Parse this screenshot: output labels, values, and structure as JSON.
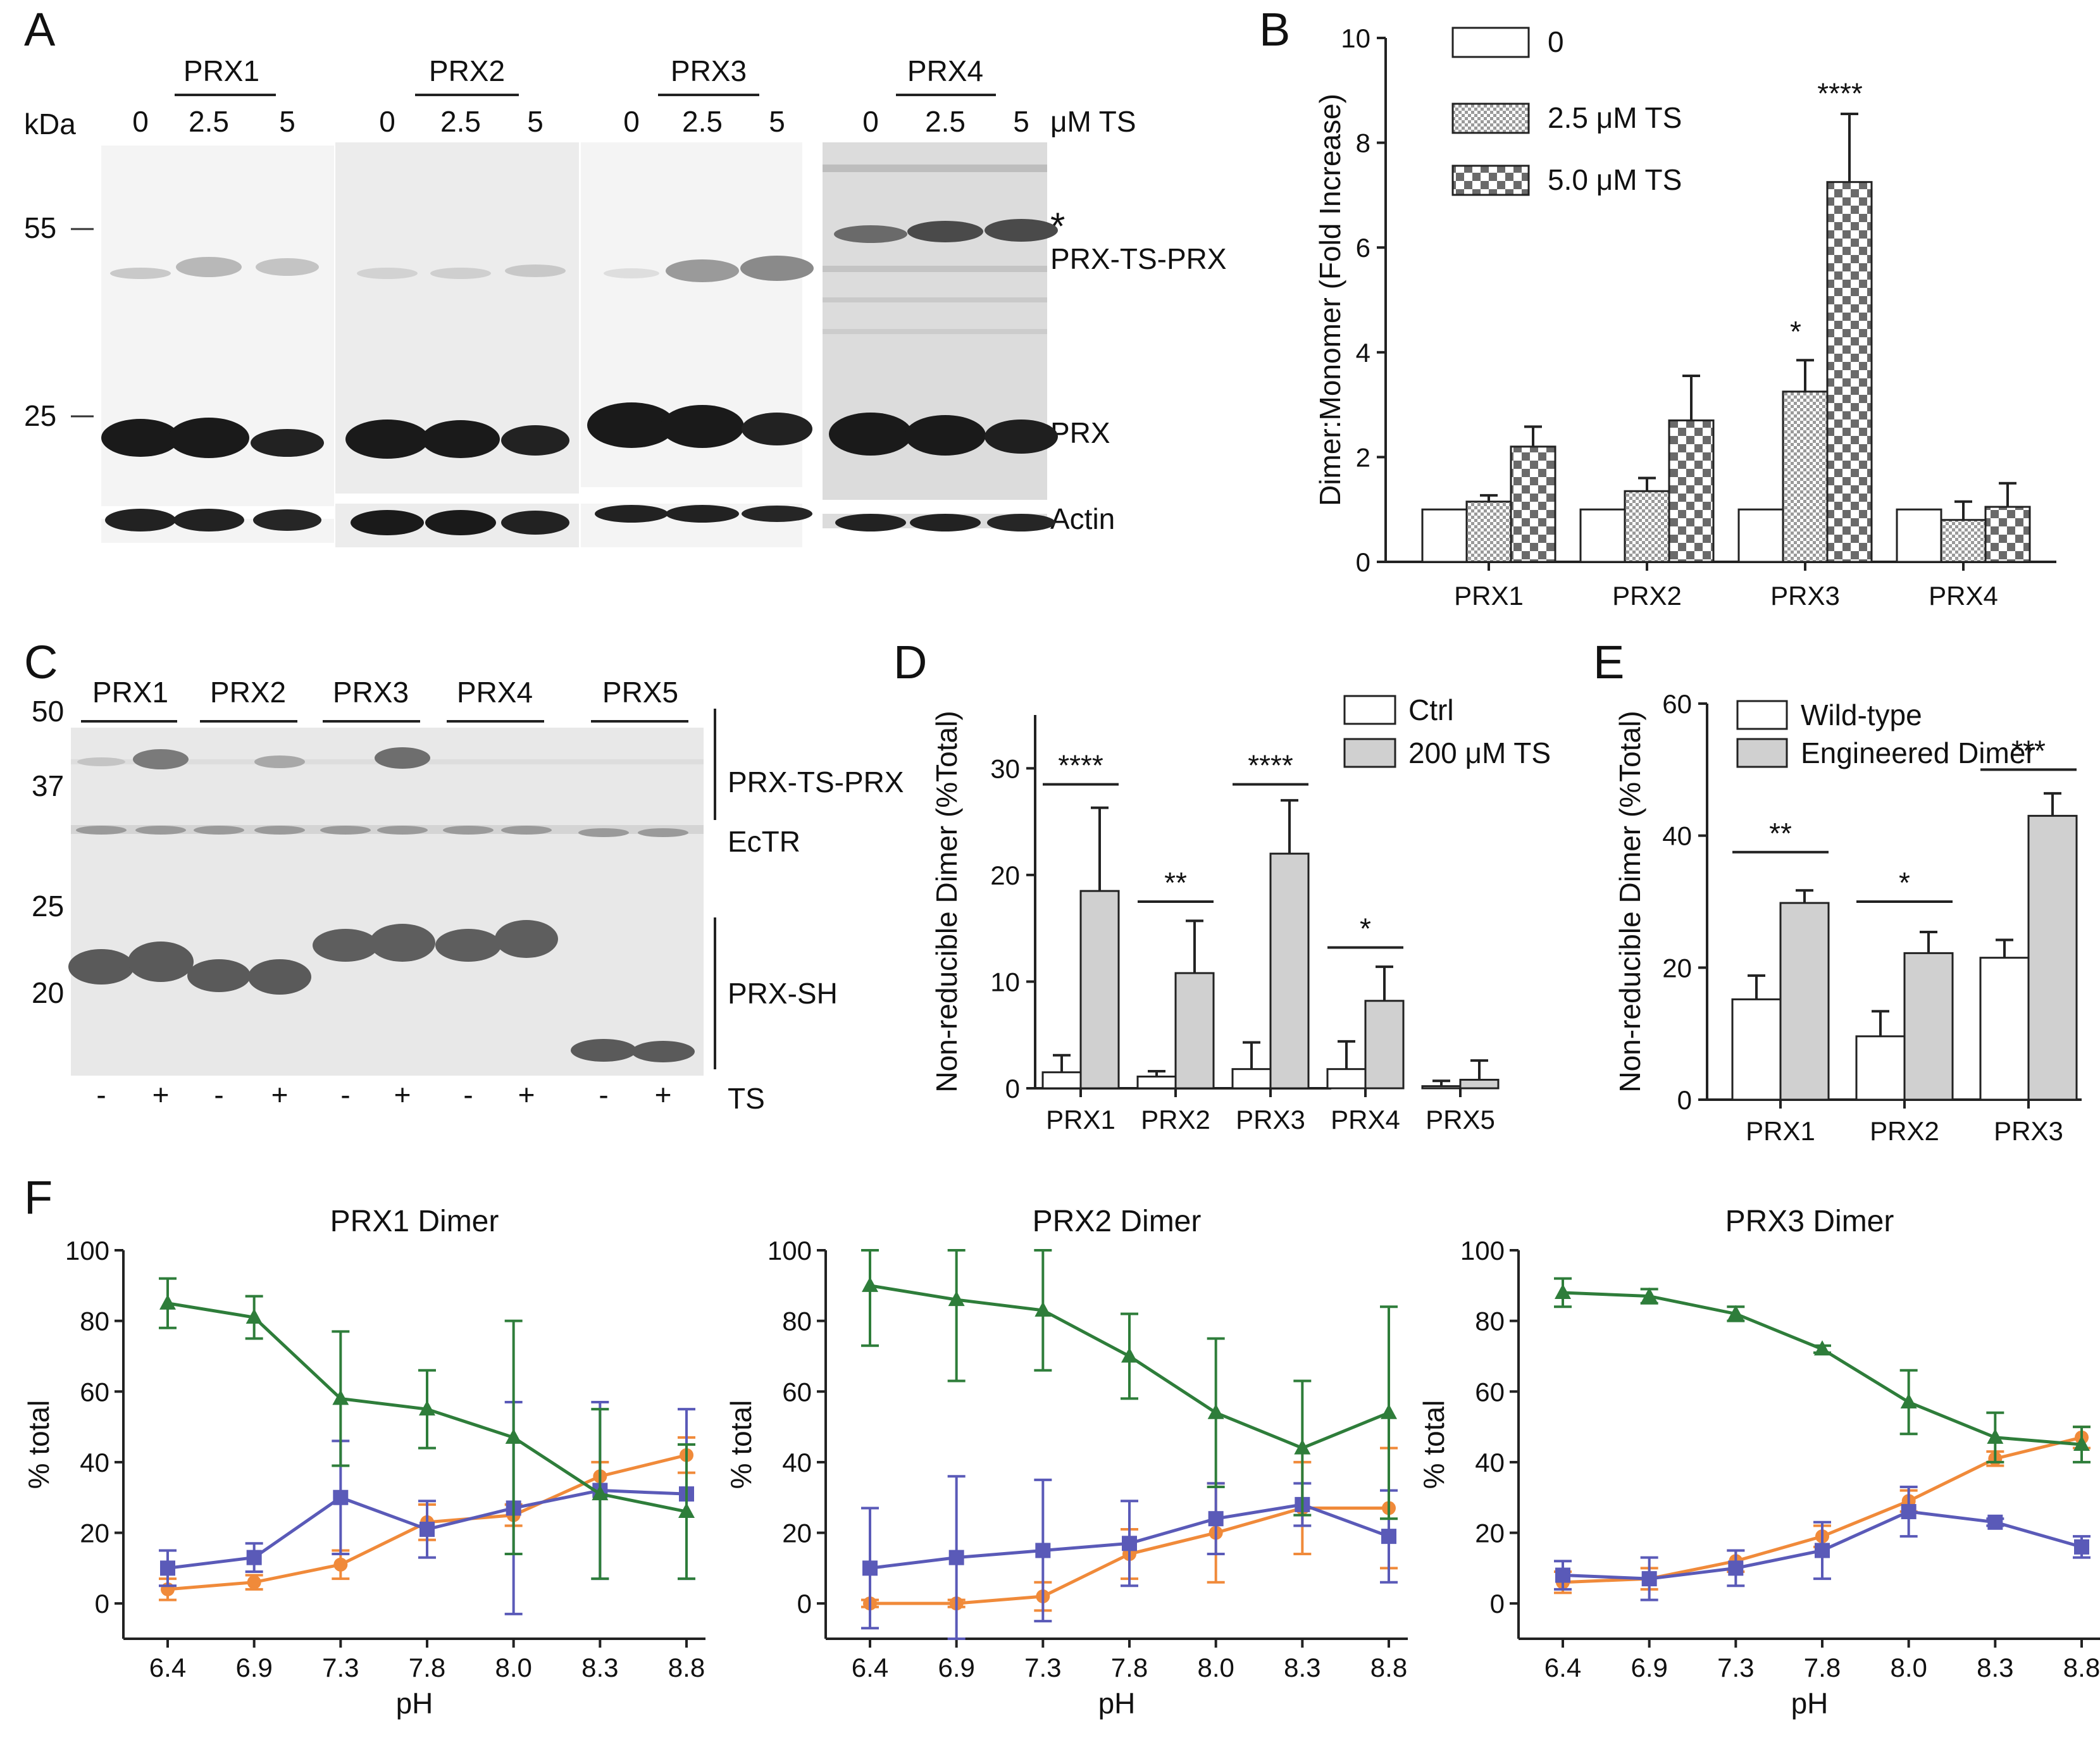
{
  "colors": {
    "wt": "#ffffff",
    "dimer": "#d0d0d0",
    "orange": "#f08a3a",
    "blue": "#5a5ab8",
    "green": "#2e7d3a",
    "band": "#1a1a1a"
  },
  "panel_labels": [
    "A",
    "B",
    "C",
    "D",
    "E",
    "F"
  ],
  "panelA": {
    "groups": [
      "PRX1",
      "PRX2",
      "PRX3",
      "PRX4"
    ],
    "lanes": [
      "0",
      "2.5",
      "5"
    ],
    "kda_label": "kDa",
    "ts_label": "μM TS",
    "markers": [
      "55",
      "25"
    ],
    "band_labels": [
      "PRX-TS-PRX",
      "PRX",
      "Actin"
    ],
    "asterisk": "*"
  },
  "panelC": {
    "groups": [
      "PRX1",
      "PRX2",
      "PRX3",
      "PRX4",
      "PRX5"
    ],
    "markers": [
      "50",
      "37",
      "25",
      "20"
    ],
    "band_labels": [
      "PRX-TS-PRX",
      "EcTR",
      "PRX-SH"
    ],
    "ts_signs": [
      "-",
      "+",
      "-",
      "+",
      "-",
      "+",
      "-",
      "+",
      "-",
      "+"
    ],
    "ts_label": "TS"
  },
  "chart_data": [
    {
      "id": "B",
      "type": "bar",
      "ylabel": "Dimer:Monomer (Fold Increase)",
      "ylim": [
        0,
        10
      ],
      "yticks": [
        0,
        2,
        4,
        6,
        8,
        10
      ],
      "categories": [
        "PRX1",
        "PRX2",
        "PRX3",
        "PRX4"
      ],
      "series": [
        {
          "name": "0",
          "values": [
            1.0,
            1.0,
            1.0,
            1.0
          ],
          "err": [
            0,
            0,
            0,
            0
          ]
        },
        {
          "name": "2.5 μM TS",
          "values": [
            1.15,
            1.35,
            3.25,
            0.8
          ],
          "err": [
            0.12,
            0.25,
            0.6,
            0.35
          ]
        },
        {
          "name": "5.0 μM TS",
          "values": [
            2.2,
            2.7,
            7.25,
            1.05
          ],
          "err": [
            0.38,
            0.85,
            1.3,
            0.45
          ]
        }
      ],
      "annotations": [
        "*",
        "****"
      ]
    },
    {
      "id": "D",
      "type": "bar",
      "ylabel": "Non-reducible Dimer (%Total)",
      "ylim": [
        0,
        35
      ],
      "yticks": [
        0,
        10,
        20,
        30
      ],
      "categories": [
        "PRX1",
        "PRX2",
        "PRX3",
        "PRX4",
        "PRX5"
      ],
      "series": [
        {
          "name": "Ctrl",
          "values": [
            1.5,
            1.1,
            1.8,
            1.8,
            0.2
          ],
          "err": [
            1.6,
            0.5,
            2.5,
            2.6,
            0.5
          ]
        },
        {
          "name": "200 μM TS",
          "values": [
            18.5,
            10.8,
            22.0,
            8.2,
            0.8
          ],
          "err": [
            7.8,
            4.9,
            5.0,
            3.2,
            1.8
          ]
        }
      ],
      "annotations": [
        "****",
        "**",
        "****",
        "*"
      ]
    },
    {
      "id": "E",
      "type": "bar",
      "ylabel": "Non-reducible Dimer (%Total)",
      "ylim": [
        0,
        60
      ],
      "yticks": [
        0,
        20,
        40,
        60
      ],
      "categories": [
        "PRX1",
        "PRX2",
        "PRX3"
      ],
      "series": [
        {
          "name": "Wild-type",
          "values": [
            15.2,
            9.6,
            21.5
          ],
          "err": [
            3.6,
            3.8,
            2.7
          ]
        },
        {
          "name": "Engineered Dimer",
          "values": [
            29.8,
            22.2,
            43.0
          ],
          "err": [
            1.9,
            3.2,
            3.4
          ]
        }
      ],
      "annotations": [
        "**",
        "*",
        "***"
      ]
    },
    {
      "id": "F1",
      "type": "line",
      "title": "PRX1 Dimer",
      "xlabel": "pH",
      "ylabel": "% total",
      "ylim": [
        -10,
        100
      ],
      "yticks": [
        0,
        20,
        40,
        60,
        80,
        100
      ],
      "categories": [
        "6.4",
        "6.9",
        "7.3",
        "7.8",
        "8.0",
        "8.3",
        "8.8"
      ],
      "series": [
        {
          "name": "orange",
          "values": [
            4,
            6,
            11,
            23,
            25,
            36,
            42
          ],
          "err": [
            3,
            2,
            4,
            5,
            3,
            4,
            5
          ]
        },
        {
          "name": "blue",
          "values": [
            10,
            13,
            30,
            21,
            27,
            32,
            31
          ],
          "err": [
            5,
            4,
            16,
            8,
            30,
            25,
            24
          ]
        },
        {
          "name": "green",
          "values": [
            85,
            81,
            58,
            55,
            47,
            31,
            26
          ],
          "err": [
            7,
            6,
            19,
            11,
            33,
            24,
            19
          ]
        }
      ]
    },
    {
      "id": "F2",
      "type": "line",
      "title": "PRX2 Dimer",
      "xlabel": "pH",
      "ylabel": "% total",
      "ylim": [
        -10,
        100
      ],
      "yticks": [
        0,
        20,
        40,
        60,
        80,
        100
      ],
      "categories": [
        "6.4",
        "6.9",
        "7.3",
        "7.8",
        "8.0",
        "8.3",
        "8.8"
      ],
      "series": [
        {
          "name": "orange",
          "values": [
            0,
            0,
            2,
            14,
            20,
            27,
            27
          ],
          "err": [
            1,
            1,
            4,
            7,
            14,
            13,
            17
          ]
        },
        {
          "name": "blue",
          "values": [
            10,
            13,
            15,
            17,
            24,
            28,
            19
          ],
          "err": [
            17,
            23,
            20,
            12,
            10,
            6,
            13
          ]
        },
        {
          "name": "green",
          "values": [
            90,
            86,
            83,
            70,
            54,
            44,
            54
          ],
          "err": [
            17,
            23,
            17,
            12,
            21,
            19,
            30
          ]
        }
      ]
    },
    {
      "id": "F3",
      "type": "line",
      "title": "PRX3 Dimer",
      "xlabel": "pH",
      "ylabel": "% total",
      "ylim": [
        -10,
        100
      ],
      "yticks": [
        0,
        20,
        40,
        60,
        80,
        100
      ],
      "categories": [
        "6.4",
        "6.9",
        "7.3",
        "7.8",
        "8.0",
        "8.3",
        "8.8"
      ],
      "series": [
        {
          "name": "orange",
          "values": [
            6,
            7,
            12,
            19,
            29,
            41,
            47
          ],
          "err": [
            3,
            3,
            3,
            3,
            3,
            2,
            3
          ]
        },
        {
          "name": "blue",
          "values": [
            8,
            7,
            10,
            15,
            26,
            23,
            16
          ],
          "err": [
            4,
            6,
            5,
            8,
            7,
            1,
            3
          ]
        },
        {
          "name": "green",
          "values": [
            88,
            87,
            82,
            72,
            57,
            47,
            45
          ],
          "err": [
            4,
            2,
            2,
            1,
            9,
            7,
            5
          ]
        }
      ]
    }
  ]
}
